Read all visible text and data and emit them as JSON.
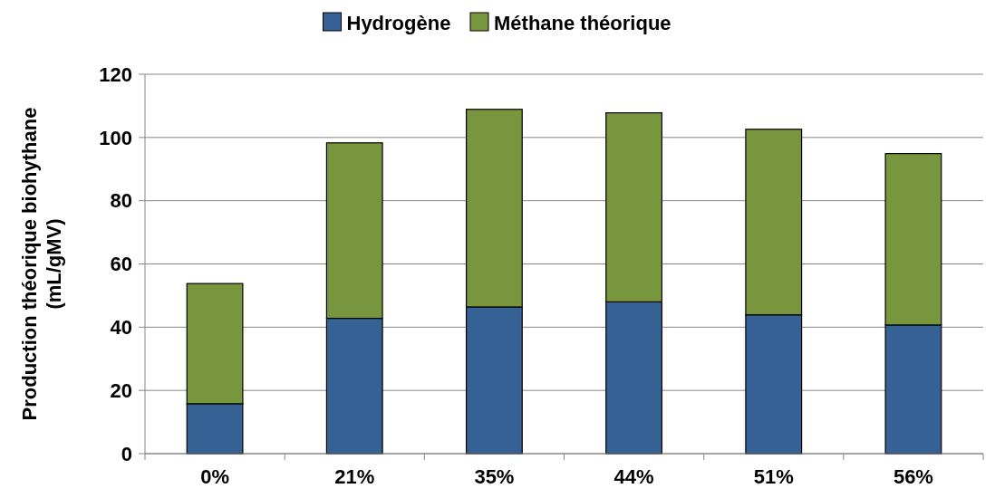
{
  "chart_data": {
    "type": "bar",
    "stacked": true,
    "ylabel": "Production théorique biohythane\n(mL/gMV)",
    "categories": [
      "0%",
      "21%",
      "35%",
      "44%",
      "51%",
      "56%"
    ],
    "series": [
      {
        "name": "Hydrogène",
        "color": "#366195",
        "values": [
          15.8,
          42.8,
          46.4,
          48,
          43.9,
          40.7
        ]
      },
      {
        "name": "Méthane théorique",
        "color": "#77963d",
        "values": [
          38,
          55.5,
          62.5,
          59.8,
          58.7,
          54.2
        ]
      }
    ],
    "ylim": [
      0,
      120
    ],
    "yticks": [
      0,
      20,
      40,
      60,
      80,
      100,
      120
    ],
    "grid": "y",
    "legend": "top"
  }
}
